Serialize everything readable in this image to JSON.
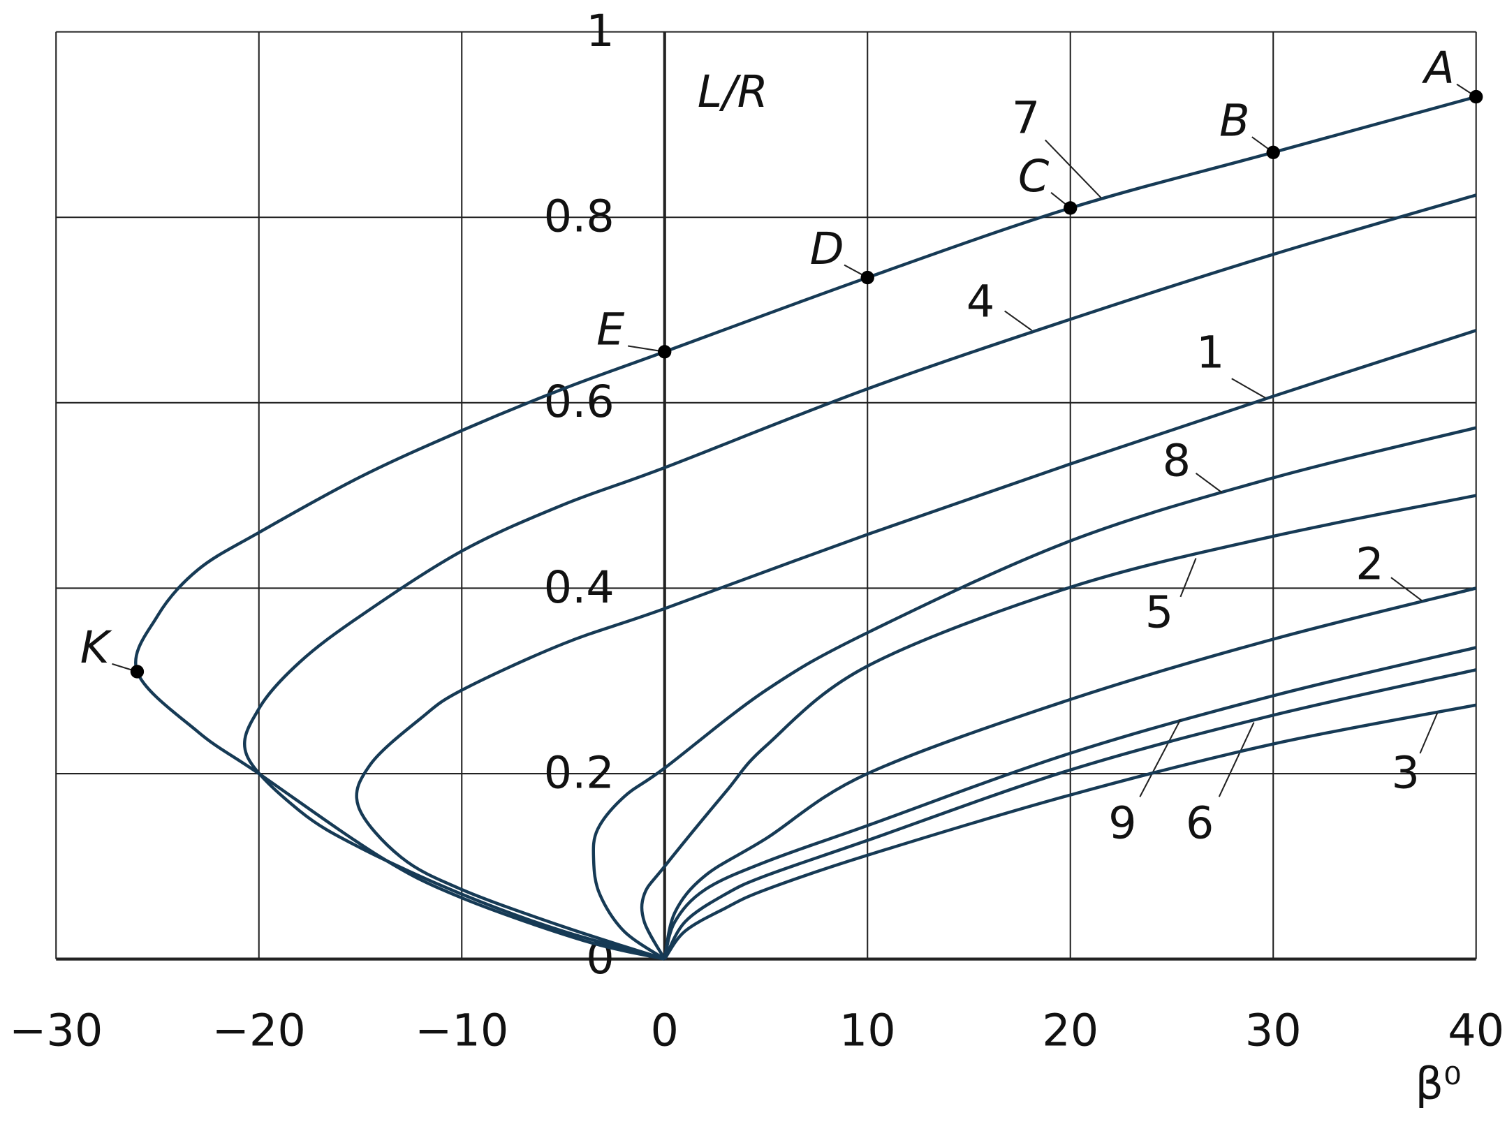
{
  "chart_data": {
    "type": "line",
    "x_label": "β⁰",
    "y_label": "L/R",
    "xlim": [
      -30,
      40
    ],
    "ylim": [
      0,
      1
    ],
    "xticks": [
      {
        "value": -30,
        "label": "−30"
      },
      {
        "value": -20,
        "label": "−20"
      },
      {
        "value": -10,
        "label": "−10"
      },
      0,
      10,
      20,
      30,
      40
    ],
    "yticks": [
      0,
      0.2,
      0.4,
      0.6,
      0.8,
      1
    ],
    "grid": true,
    "series": [
      {
        "name": "7",
        "color": "#163a55",
        "x": [
          0,
          -4,
          -10,
          -14,
          -20,
          -23,
          -26,
          -25,
          -23,
          -20,
          -15,
          -10,
          -5,
          0,
          10,
          20,
          30,
          40
        ],
        "y": [
          0,
          0.02,
          0.066,
          0.11,
          0.2,
          0.245,
          0.31,
          0.37,
          0.42,
          0.46,
          0.52,
          0.57,
          0.615,
          0.655,
          0.735,
          0.81,
          0.87,
          0.93
        ]
      },
      {
        "name": "4",
        "color": "#163a55",
        "x": [
          0,
          -5,
          -10,
          -15,
          -18,
          -20.6,
          -20,
          -18,
          -15,
          -10,
          -5,
          0,
          10,
          20,
          30,
          40
        ],
        "y": [
          0,
          0.03,
          0.07,
          0.12,
          0.16,
          0.22,
          0.27,
          0.32,
          0.37,
          0.44,
          0.49,
          0.53,
          0.615,
          0.69,
          0.76,
          0.824
        ]
      },
      {
        "name": "1",
        "color": "#163a55",
        "x": [
          0,
          -5,
          -10,
          -13,
          -15.1,
          -14.5,
          -12,
          -10,
          -5,
          0,
          10,
          20,
          30,
          40
        ],
        "y": [
          0,
          0.035,
          0.075,
          0.11,
          0.165,
          0.21,
          0.26,
          0.29,
          0.34,
          0.378,
          0.458,
          0.534,
          0.607,
          0.678
        ]
      },
      {
        "name": "8",
        "color": "#163a55",
        "x": [
          0,
          -2,
          -3.2,
          -3.5,
          -3.3,
          -2,
          0,
          5,
          10,
          20,
          30,
          40
        ],
        "y": [
          0,
          0.03,
          0.07,
          0.107,
          0.14,
          0.175,
          0.206,
          0.29,
          0.352,
          0.451,
          0.519,
          0.573
        ]
      },
      {
        "name": "5",
        "color": "#163a55",
        "x": [
          0,
          -1,
          -1,
          0,
          3,
          5,
          10,
          20,
          30,
          40
        ],
        "y": [
          0,
          0.04,
          0.07,
          0.1,
          0.18,
          0.23,
          0.316,
          0.401,
          0.456,
          0.5
        ]
      },
      {
        "name": "2",
        "color": "#163a55",
        "x": [
          0,
          0.5,
          2,
          5,
          10,
          20,
          30,
          40
        ],
        "y": [
          0,
          0.05,
          0.09,
          0.13,
          0.2,
          0.28,
          0.345,
          0.4
        ]
      },
      {
        "name": "9",
        "color": "#163a55",
        "x": [
          0,
          0.5,
          2,
          5,
          10,
          20,
          30,
          40
        ],
        "y": [
          0,
          0.04,
          0.075,
          0.105,
          0.144,
          0.222,
          0.284,
          0.336
        ]
      },
      {
        "name": "6",
        "color": "#163a55",
        "x": [
          0,
          1,
          3,
          5,
          10,
          20,
          30,
          40
        ],
        "y": [
          0,
          0.04,
          0.07,
          0.09,
          0.128,
          0.204,
          0.263,
          0.312
        ]
      },
      {
        "name": "3",
        "color": "#163a55",
        "x": [
          0,
          1,
          3,
          5,
          10,
          20,
          30,
          40
        ],
        "y": [
          0,
          0.03,
          0.055,
          0.075,
          0.112,
          0.177,
          0.232,
          0.274
        ]
      }
    ],
    "points": [
      {
        "label": "A",
        "x": 40,
        "y": 0.93
      },
      {
        "label": "B",
        "x": 30,
        "y": 0.87
      },
      {
        "label": "C",
        "x": 20,
        "y": 0.81
      },
      {
        "label": "D",
        "x": 10,
        "y": 0.735
      },
      {
        "label": "E",
        "x": 0,
        "y": 0.655
      },
      {
        "label": "K",
        "x": -26,
        "y": 0.31
      }
    ]
  }
}
